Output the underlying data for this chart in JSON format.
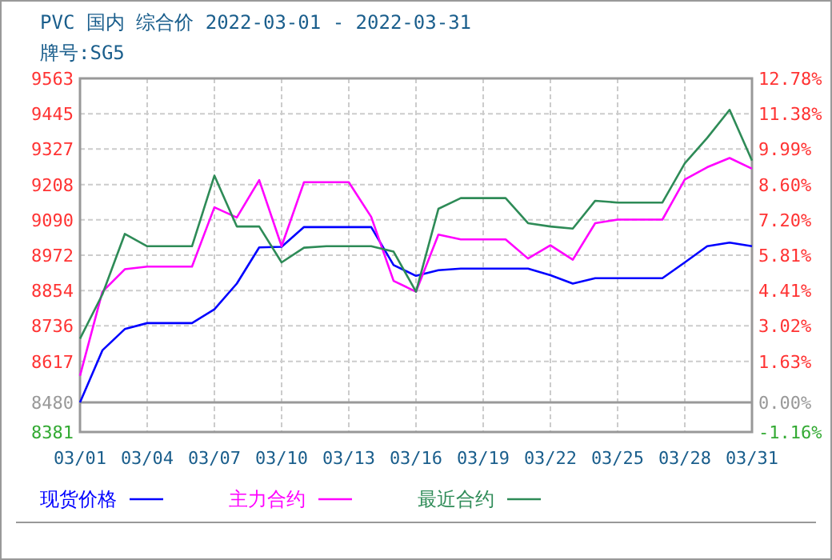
{
  "chart_data": {
    "type": "line",
    "title": "PVC 国内 综合价 2022-03-01 - 2022-03-31",
    "subtitle": "牌号:SG5",
    "x": [
      "2022-03-01",
      "2022-03-02",
      "2022-03-03",
      "2022-03-04",
      "2022-03-05",
      "2022-03-06",
      "2022-03-07",
      "2022-03-08",
      "2022-03-09",
      "2022-03-10",
      "2022-03-11",
      "2022-03-12",
      "2022-03-13",
      "2022-03-14",
      "2022-03-15",
      "2022-03-16",
      "2022-03-17",
      "2022-03-18",
      "2022-03-19",
      "2022-03-20",
      "2022-03-21",
      "2022-03-22",
      "2022-03-23",
      "2022-03-24",
      "2022-03-25",
      "2022-03-26",
      "2022-03-27",
      "2022-03-28",
      "2022-03-29",
      "2022-03-30",
      "2022-03-31"
    ],
    "series": [
      {
        "name": "现货价格",
        "color": "#0000ff",
        "values": [
          8480,
          8654,
          8725,
          8745,
          8745,
          8745,
          8791,
          8877,
          8998,
          9000,
          9066,
          9066,
          9066,
          9066,
          8939,
          8903,
          8922,
          8927,
          8927,
          8927,
          8927,
          8905,
          8877,
          8895,
          8895,
          8895,
          8895,
          8948,
          9002,
          9014,
          9002
        ]
      },
      {
        "name": "主力合约",
        "color": "#ff00ff",
        "values": [
          8569,
          8850,
          8925,
          8934,
          8934,
          8934,
          9132,
          9098,
          9223,
          9002,
          9216,
          9216,
          9216,
          9100,
          8886,
          8850,
          9041,
          9025,
          9025,
          9025,
          8961,
          9005,
          8957,
          9079,
          9091,
          9091,
          9091,
          9225,
          9266,
          9297,
          9261
        ]
      },
      {
        "name": "最近合约",
        "color": "#2e8b57",
        "values": [
          8693,
          8841,
          9043,
          9002,
          9002,
          9002,
          9238,
          9068,
          9068,
          8948,
          8997,
          9002,
          9002,
          9002,
          8984,
          8850,
          9127,
          9163,
          9163,
          9163,
          9079,
          9068,
          9061,
          9154,
          9148,
          9148,
          9148,
          9279,
          9364,
          9458,
          9288
        ]
      }
    ],
    "xlim": [
      "2022-03-01",
      "2022-03-31"
    ],
    "xticks": [
      {
        "value": "2022-03-01",
        "label": "03/01"
      },
      {
        "value": "2022-03-04",
        "label": "03/04"
      },
      {
        "value": "2022-03-07",
        "label": "03/07"
      },
      {
        "value": "2022-03-10",
        "label": "03/10"
      },
      {
        "value": "2022-03-13",
        "label": "03/13"
      },
      {
        "value": "2022-03-16",
        "label": "03/16"
      },
      {
        "value": "2022-03-19",
        "label": "03/19"
      },
      {
        "value": "2022-03-22",
        "label": "03/22"
      },
      {
        "value": "2022-03-25",
        "label": "03/25"
      },
      {
        "value": "2022-03-28",
        "label": "03/28"
      },
      {
        "value": "2022-03-31",
        "label": "03/31"
      }
    ],
    "ylim": [
      8381,
      9563
    ],
    "yticks": [
      8381,
      8480,
      8617,
      8736,
      8854,
      8972,
      9090,
      9208,
      9327,
      9445,
      9563
    ],
    "y2lim": [
      -1.16,
      12.78
    ],
    "y2ticks": [
      {
        "value": -1.16,
        "label": "-1.16%"
      },
      {
        "value": 0,
        "label": "0.00%"
      },
      {
        "value": 1.63,
        "label": "1.63%"
      },
      {
        "value": 3.02,
        "label": "3.02%"
      },
      {
        "value": 4.41,
        "label": "4.41%"
      },
      {
        "value": 5.81,
        "label": "5.81%"
      },
      {
        "value": 7.2,
        "label": "7.20%"
      },
      {
        "value": 8.6,
        "label": "8.60%"
      },
      {
        "value": 9.99,
        "label": "9.99%"
      },
      {
        "value": 11.38,
        "label": "11.38%"
      },
      {
        "value": 12.78,
        "label": "12.78%"
      }
    ],
    "ref_lines": [
      {
        "axis": "y",
        "value": 8480,
        "color": "#999999"
      }
    ],
    "grid": true,
    "legend": "bottom",
    "line_style": "solid",
    "marker": "none"
  }
}
